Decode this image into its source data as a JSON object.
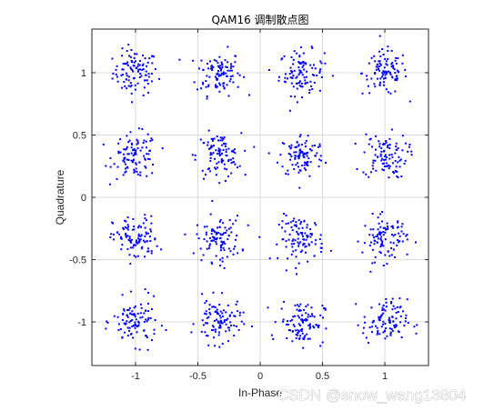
{
  "watermark": "CSDN @snow_wang13804",
  "chart_data": {
    "type": "scatter",
    "title": "QAM16 调制散点图",
    "xlabel": "In-Phase",
    "ylabel": "Quadrature",
    "xlim": [
      -1.35,
      1.35
    ],
    "ylim": [
      -1.35,
      1.35
    ],
    "xticks": [
      -1,
      -0.5,
      0,
      0.5,
      1
    ],
    "xtick_labels": [
      "-1",
      "-0.5",
      "0",
      "0.5",
      "1"
    ],
    "yticks": [
      -1,
      -0.5,
      0,
      0.5,
      1
    ],
    "ytick_labels": [
      "-1",
      "-0.5",
      "0",
      "0.5",
      "1"
    ],
    "grid": true,
    "legend": "none",
    "marker_color": "#0000ff",
    "marker_size": 2,
    "constellation_points": [
      [
        -1,
        1
      ],
      [
        -0.333,
        1
      ],
      [
        0.333,
        1
      ],
      [
        1,
        1
      ],
      [
        -1,
        0.333
      ],
      [
        -0.333,
        0.333
      ],
      [
        0.333,
        0.333
      ],
      [
        1,
        0.333
      ],
      [
        -1,
        -0.333
      ],
      [
        -0.333,
        -0.333
      ],
      [
        0.333,
        -0.333
      ],
      [
        1,
        -0.333
      ],
      [
        -1,
        -1
      ],
      [
        -0.333,
        -1
      ],
      [
        0.333,
        -1
      ],
      [
        1,
        -1
      ]
    ],
    "samples_per_symbol": 100,
    "noise_std": 0.09
  }
}
